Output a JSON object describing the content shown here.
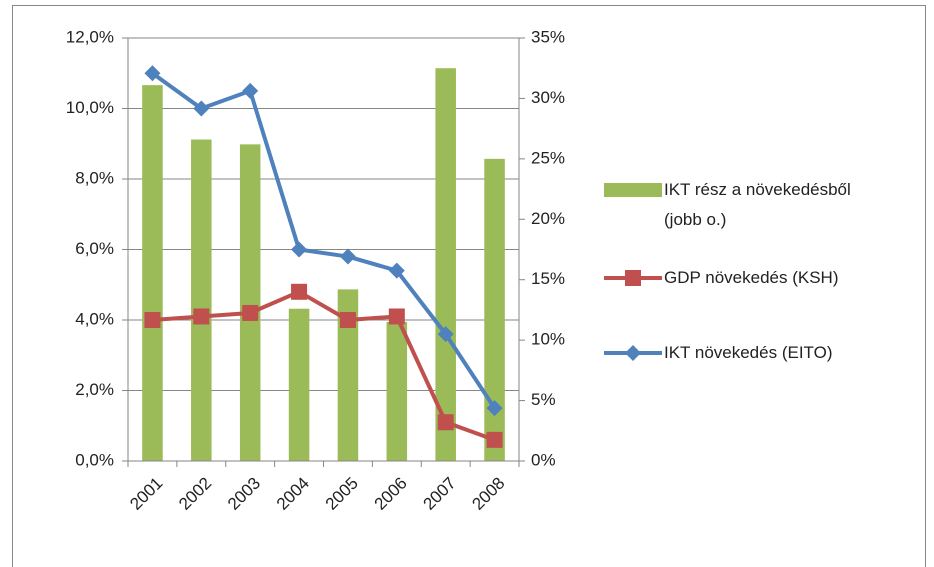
{
  "chart_data": {
    "type": "bar_line",
    "categories": [
      "2001",
      "2002",
      "2003",
      "2004",
      "2005",
      "2006",
      "2007",
      "2008"
    ],
    "series": [
      {
        "name": "IKT rész a növekedésből (jobb o.)",
        "type": "bar",
        "axis": "y2",
        "color": "#9bbb59",
        "values": [
          31.1,
          26.6,
          26.2,
          12.6,
          14.2,
          11.5,
          32.5,
          25.0
        ]
      },
      {
        "name": "GDP növekedés (KSH)",
        "type": "line",
        "color": "#c0504d",
        "marker": "square",
        "values": [
          4.0,
          4.1,
          4.2,
          4.8,
          4.0,
          4.1,
          1.1,
          0.6
        ]
      },
      {
        "name": "IKT növekedés (EITO)",
        "type": "line",
        "color": "#4f81bd",
        "marker": "diamond",
        "values": [
          11.0,
          10.0,
          10.5,
          6.0,
          5.8,
          5.4,
          3.6,
          1.5
        ]
      }
    ],
    "ylim": [
      0,
      12
    ],
    "yticks": [
      {
        "value": 0,
        "label": "0,0%"
      },
      {
        "value": 2,
        "label": "2,0%"
      },
      {
        "value": 4,
        "label": "4,0%"
      },
      {
        "value": 6,
        "label": "6,0%"
      },
      {
        "value": 8,
        "label": "8,0%"
      },
      {
        "value": 10,
        "label": "10,0%"
      },
      {
        "value": 12,
        "label": "12,0%"
      }
    ],
    "y2lim": [
      0,
      35
    ],
    "y2ticks": [
      {
        "value": 0,
        "label": "0%"
      },
      {
        "value": 5,
        "label": "5%"
      },
      {
        "value": 10,
        "label": "10%"
      },
      {
        "value": 15,
        "label": "15%"
      },
      {
        "value": 20,
        "label": "20%"
      },
      {
        "value": 25,
        "label": "25%"
      },
      {
        "value": 30,
        "label": "30%"
      },
      {
        "value": 35,
        "label": "35%"
      }
    ],
    "grid": true,
    "legend": "right"
  }
}
